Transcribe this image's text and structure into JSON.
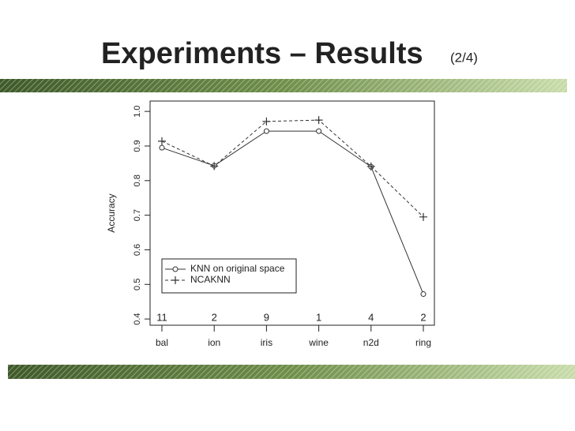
{
  "chart_data": {
    "type": "line",
    "title": "Experiments – Results",
    "subtitle": "(2/4)",
    "ylabel": "Accuracy",
    "categories": [
      "bal",
      "ion",
      "iris",
      "wine",
      "n2d",
      "ring"
    ],
    "annotations": [
      "11",
      "2",
      "9",
      "1",
      "4",
      "2"
    ],
    "series": [
      {
        "name": "KNN on original space",
        "color": "#333333",
        "linestyle": "solid",
        "marker": "circle",
        "values": [
          0.895,
          0.843,
          0.943,
          0.943,
          0.84,
          0.472
        ]
      },
      {
        "name": "NCAKNN",
        "color": "#333333",
        "linestyle": "dashed",
        "marker": "plus",
        "values": [
          0.914,
          0.842,
          0.971,
          0.975,
          0.841,
          0.695
        ]
      }
    ],
    "ylim": [
      0.382,
      1.03
    ],
    "yticks": [
      0.4,
      0.5,
      0.6,
      0.7,
      0.8,
      0.9,
      {
        "value": 1,
        "label": "1.0"
      }
    ],
    "legend": "lower-left"
  }
}
